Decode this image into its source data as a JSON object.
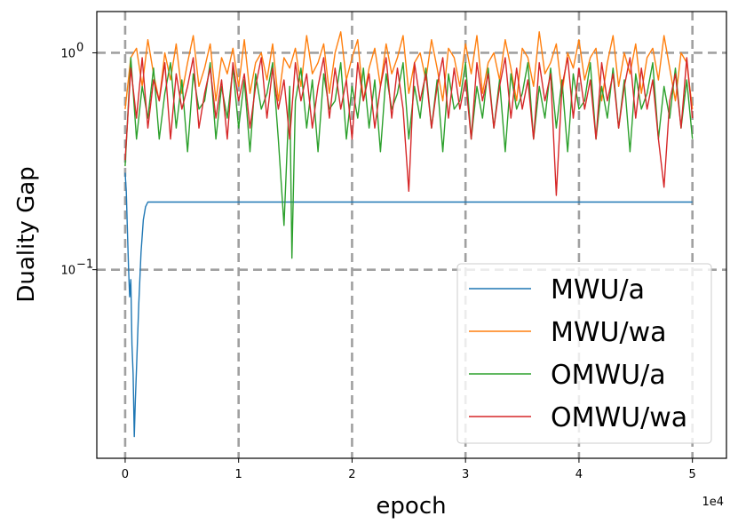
{
  "chart_data": {
    "type": "line",
    "xlabel": "epoch",
    "ylabel": "Duality Gap",
    "x_offset_label": "1e4",
    "xlim": [
      -2500,
      53000
    ],
    "ylim": [
      0.0135,
      1.55
    ],
    "yscale": "log",
    "grid": true,
    "legend_position": "lower-right",
    "x_ticks": [
      {
        "value": 0,
        "label": "0"
      },
      {
        "value": 10000,
        "label": "1"
      },
      {
        "value": 20000,
        "label": "2"
      },
      {
        "value": 30000,
        "label": "3"
      },
      {
        "value": 40000,
        "label": "4"
      },
      {
        "value": 50000,
        "label": "5"
      }
    ],
    "y_ticks": [
      {
        "value": 0.1,
        "base": "10",
        "exp": "−1"
      },
      {
        "value": 1,
        "base": "10",
        "exp": "0"
      }
    ],
    "series": [
      {
        "name": "MWU/a",
        "color": "#1f77b4",
        "x": [
          0,
          100,
          200,
          300,
          400,
          500,
          600,
          700,
          800,
          900,
          1000,
          1200,
          1400,
          1600,
          1800,
          2000,
          3000,
          10000,
          20000,
          30000,
          40000,
          50000
        ],
        "y": [
          0.28,
          0.23,
          0.15,
          0.1,
          0.075,
          0.09,
          0.045,
          0.033,
          0.017,
          0.025,
          0.035,
          0.07,
          0.12,
          0.17,
          0.195,
          0.205,
          0.205,
          0.205,
          0.205,
          0.205,
          0.205,
          0.205
        ]
      },
      {
        "name": "MWU/wa",
        "color": "#ff7f0e",
        "x": [
          0,
          500,
          1000,
          1500,
          2000,
          2500,
          3000,
          3500,
          4000,
          4500,
          5000,
          5500,
          6000,
          6500,
          7000,
          7500,
          8000,
          8500,
          9000,
          9500,
          10000,
          10500,
          11000,
          11500,
          12000,
          12500,
          13000,
          13500,
          14000,
          14500,
          15000,
          15500,
          16000,
          16500,
          17000,
          17500,
          18000,
          18500,
          19000,
          19500,
          20000,
          20500,
          21000,
          21500,
          22000,
          22500,
          23000,
          23500,
          24000,
          24500,
          25000,
          25500,
          26000,
          26500,
          27000,
          27500,
          28000,
          28500,
          29000,
          29500,
          30000,
          30500,
          31000,
          31500,
          32000,
          32500,
          33000,
          33500,
          34000,
          34500,
          35000,
          35500,
          36000,
          36500,
          37000,
          37500,
          38000,
          38500,
          39000,
          39500,
          40000,
          40500,
          41000,
          41500,
          42000,
          42500,
          43000,
          43500,
          44000,
          44500,
          45000,
          45500,
          46000,
          46500,
          47000,
          47500,
          48000,
          48500,
          49000,
          49500,
          50000
        ],
        "y": [
          0.55,
          0.95,
          1.05,
          0.7,
          1.15,
          0.8,
          0.6,
          1.0,
          0.75,
          1.1,
          0.65,
          0.9,
          1.2,
          0.7,
          0.85,
          1.1,
          0.6,
          0.95,
          0.8,
          1.05,
          0.7,
          1.15,
          0.65,
          0.9,
          1.0,
          0.75,
          1.1,
          0.6,
          0.95,
          0.85,
          1.05,
          0.7,
          1.2,
          0.8,
          0.9,
          1.1,
          0.65,
          1.0,
          1.25,
          0.75,
          0.95,
          1.15,
          0.6,
          0.85,
          1.05,
          0.7,
          1.1,
          0.8,
          0.95,
          1.2,
          0.65,
          0.9,
          1.0,
          0.75,
          1.15,
          0.85,
          0.6,
          1.05,
          0.95,
          0.7,
          1.1,
          0.8,
          1.2,
          0.65,
          0.9,
          1.0,
          0.75,
          1.15,
          0.85,
          0.6,
          1.05,
          0.95,
          0.7,
          1.25,
          0.8,
          0.9,
          1.1,
          0.65,
          1.0,
          0.85,
          1.15,
          0.75,
          0.95,
          1.05,
          0.6,
          0.9,
          1.2,
          0.7,
          1.0,
          0.8,
          1.1,
          0.65,
          0.95,
          1.05,
          0.75,
          1.2,
          0.85,
          0.6,
          1.0,
          0.9,
          0.55
        ]
      },
      {
        "name": "OMWU/a",
        "color": "#2ca02c",
        "x": [
          0,
          500,
          1000,
          1500,
          2000,
          2500,
          3000,
          3500,
          4000,
          4500,
          5000,
          5500,
          6000,
          6500,
          7000,
          7500,
          8000,
          8500,
          9000,
          9500,
          10000,
          10500,
          11000,
          11500,
          12000,
          12500,
          13000,
          13500,
          14000,
          14500,
          14700,
          15000,
          15500,
          16000,
          16500,
          17000,
          17500,
          18000,
          18500,
          19000,
          19500,
          20000,
          20500,
          21000,
          21500,
          22000,
          22500,
          23000,
          23500,
          24000,
          24500,
          25000,
          25500,
          26000,
          26500,
          27000,
          27500,
          28000,
          28500,
          29000,
          29500,
          30000,
          30500,
          31000,
          31500,
          32000,
          32500,
          33000,
          33500,
          34000,
          34500,
          35000,
          35500,
          36000,
          36500,
          37000,
          37500,
          38000,
          38500,
          39000,
          39500,
          40000,
          40500,
          41000,
          41500,
          42000,
          42500,
          43000,
          43500,
          44000,
          44500,
          45000,
          45500,
          46000,
          46500,
          47000,
          47500,
          48000,
          48500,
          49000,
          49500,
          50000
        ],
        "y": [
          0.3,
          0.95,
          0.4,
          0.7,
          0.5,
          0.85,
          0.4,
          0.65,
          0.9,
          0.45,
          0.75,
          0.35,
          0.8,
          0.55,
          0.6,
          0.9,
          0.4,
          0.7,
          0.5,
          0.85,
          0.45,
          0.75,
          0.35,
          0.8,
          0.55,
          0.65,
          0.9,
          0.4,
          0.16,
          0.7,
          0.113,
          0.6,
          0.85,
          0.45,
          0.75,
          0.35,
          0.8,
          0.55,
          0.6,
          0.9,
          0.4,
          0.7,
          0.5,
          0.85,
          0.45,
          0.75,
          0.35,
          0.8,
          0.55,
          0.65,
          0.9,
          0.4,
          0.7,
          0.5,
          0.85,
          0.45,
          0.75,
          0.35,
          0.8,
          0.55,
          0.6,
          0.9,
          0.4,
          0.7,
          0.5,
          0.85,
          0.45,
          0.75,
          0.35,
          0.8,
          0.55,
          0.65,
          0.9,
          0.4,
          0.7,
          0.5,
          0.85,
          0.45,
          0.75,
          0.35,
          0.8,
          0.55,
          0.6,
          0.9,
          0.4,
          0.7,
          0.5,
          0.85,
          0.45,
          0.75,
          0.35,
          0.8,
          0.55,
          0.65,
          0.9,
          0.4,
          0.7,
          0.5,
          0.85,
          0.45,
          0.75,
          0.4
        ]
      },
      {
        "name": "OMWU/wa",
        "color": "#d62728",
        "x": [
          0,
          500,
          1000,
          1500,
          2000,
          2500,
          3000,
          3500,
          4000,
          4500,
          5000,
          5500,
          6000,
          6500,
          7000,
          7500,
          8000,
          8500,
          9000,
          9500,
          10000,
          10500,
          11000,
          11500,
          12000,
          12500,
          13000,
          13500,
          14000,
          14500,
          15000,
          15500,
          16000,
          16500,
          17000,
          17500,
          18000,
          18500,
          19000,
          19500,
          20000,
          20500,
          21000,
          21500,
          22000,
          22500,
          23000,
          23500,
          24000,
          24500,
          25000,
          25500,
          26000,
          26500,
          27000,
          27500,
          28000,
          28500,
          29000,
          29500,
          30000,
          30500,
          31000,
          31500,
          32000,
          32500,
          33000,
          33500,
          34000,
          34500,
          35000,
          35500,
          36000,
          36500,
          37000,
          37500,
          38000,
          38500,
          39000,
          39500,
          40000,
          40500,
          41000,
          41500,
          42000,
          42500,
          43000,
          43500,
          44000,
          44500,
          45000,
          45500,
          46000,
          46500,
          47000,
          47500,
          48000,
          48500,
          49000,
          49500,
          50000
        ],
        "y": [
          0.32,
          0.85,
          0.5,
          0.95,
          0.45,
          0.75,
          0.6,
          0.9,
          0.4,
          0.8,
          0.55,
          0.7,
          0.95,
          0.45,
          0.65,
          0.85,
          0.5,
          0.75,
          0.4,
          0.9,
          0.6,
          0.8,
          0.45,
          0.7,
          0.95,
          0.5,
          0.85,
          0.55,
          0.75,
          0.4,
          0.9,
          0.6,
          0.8,
          0.45,
          0.7,
          0.95,
          0.5,
          0.85,
          0.55,
          0.75,
          0.4,
          0.9,
          0.6,
          0.8,
          0.45,
          0.7,
          0.95,
          0.5,
          0.85,
          0.55,
          0.23,
          0.9,
          0.6,
          0.8,
          0.45,
          0.7,
          0.95,
          0.5,
          0.85,
          0.55,
          0.75,
          0.4,
          0.9,
          0.6,
          0.8,
          0.45,
          0.7,
          0.95,
          0.5,
          0.85,
          0.55,
          0.75,
          0.4,
          0.9,
          0.6,
          0.8,
          0.22,
          0.7,
          0.95,
          0.5,
          0.85,
          0.55,
          0.75,
          0.4,
          0.9,
          0.6,
          0.8,
          0.45,
          0.7,
          0.95,
          0.5,
          0.85,
          0.55,
          0.75,
          0.4,
          0.24,
          0.6,
          0.8,
          0.45,
          0.95,
          0.5
        ]
      }
    ]
  }
}
